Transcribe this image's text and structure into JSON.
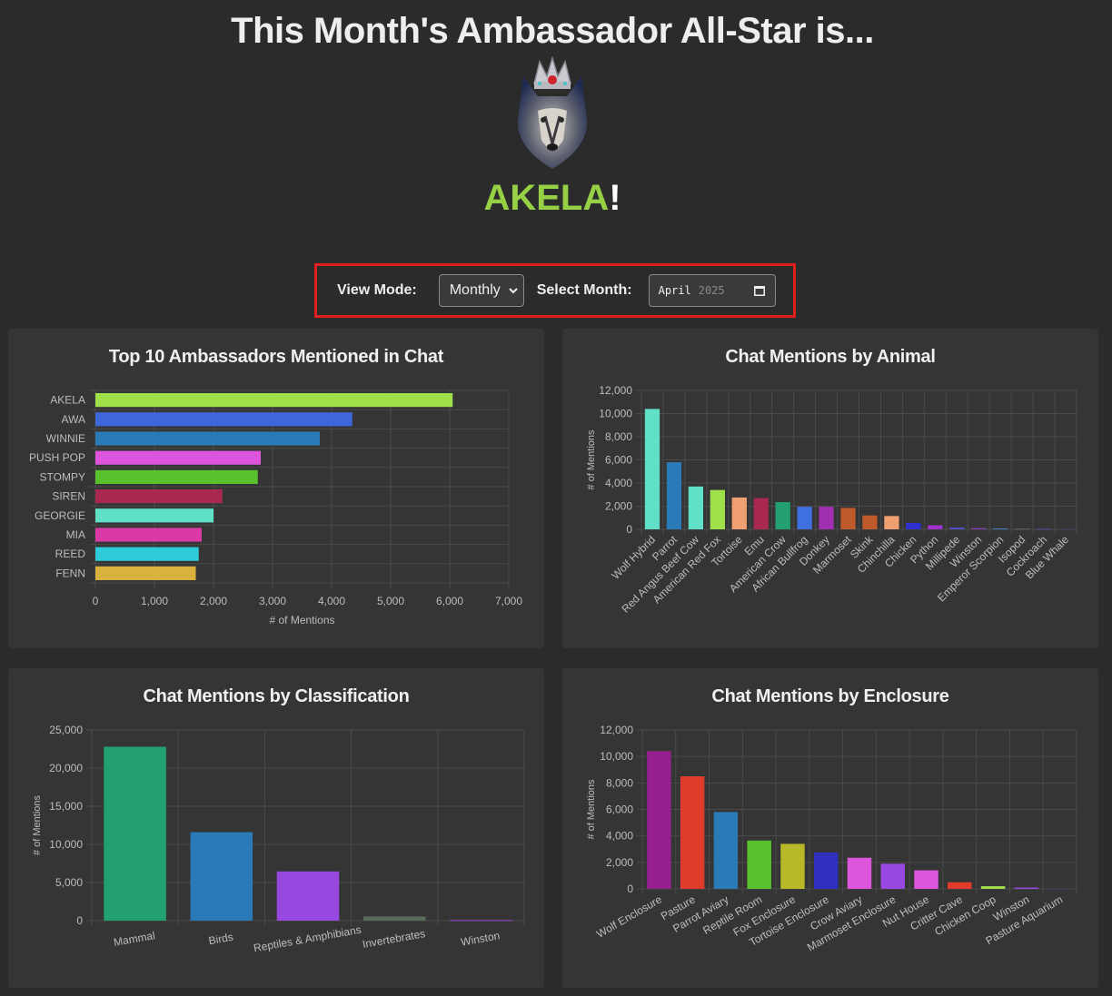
{
  "header": {
    "headline": "This Month's Ambassador All-Star is...",
    "winner_name": "AKELA",
    "winner_suffix": "!"
  },
  "controls": {
    "view_mode_label": "View Mode:",
    "view_mode_value": "Monthly",
    "select_month_label": "Select Month:",
    "month_value": "April",
    "year_value": "2025"
  },
  "colors": {
    "highlight_border": "#e01e1e",
    "winner_green": "#95d045"
  },
  "chart_data": [
    {
      "type": "bar",
      "orientation": "horizontal",
      "title": "Top 10 Ambassadors Mentioned in Chat",
      "xlabel": "# of Mentions",
      "ylabel": "",
      "xlim": [
        0,
        7000
      ],
      "ticks": [
        0,
        1000,
        2000,
        3000,
        4000,
        5000,
        6000,
        7000
      ],
      "categories": [
        "AKELA",
        "AWA",
        "WINNIE",
        "PUSH POP",
        "STOMPY",
        "SIREN",
        "GEORGIE",
        "MIA",
        "REED",
        "FENN"
      ],
      "values": [
        6050,
        4350,
        3800,
        2800,
        2750,
        2150,
        2000,
        1800,
        1750,
        1700
      ],
      "colors": [
        "#9fe04b",
        "#3f67dc",
        "#2a7ab8",
        "#dd55dd",
        "#5ac12e",
        "#a8284f",
        "#5fe0c7",
        "#d93aa5",
        "#2ecad8",
        "#d9b13d"
      ],
      "grid": true
    },
    {
      "type": "bar",
      "title": "Chat Mentions by Animal",
      "xlabel": "",
      "ylabel": "# of Mentions",
      "ylim": [
        0,
        12000
      ],
      "ticks": [
        0,
        2000,
        4000,
        6000,
        8000,
        10000,
        12000
      ],
      "categories": [
        "Wolf Hybrid",
        "Parrot",
        "Red Angus Beef Cow",
        "American Red Fox",
        "Tortoise",
        "Emu",
        "American Crow",
        "African Bullfrog",
        "Donkey",
        "Marmoset",
        "Skink",
        "Chinchilla",
        "Chicken",
        "Python",
        "Millipede",
        "Winston",
        "Emperor Scorpion",
        "Isopod",
        "Cockroach",
        "Blue Whale"
      ],
      "values": [
        10400,
        5800,
        3700,
        3400,
        2750,
        2700,
        2350,
        1950,
        1950,
        1850,
        1200,
        1150,
        550,
        350,
        150,
        100,
        80,
        60,
        50,
        30
      ],
      "colors": [
        "#5fe0c7",
        "#2a7ab8",
        "#5fe0c7",
        "#9fe04b",
        "#f0a070",
        "#a8284f",
        "#22a070",
        "#4070e0",
        "#a030b0",
        "#c05a2a",
        "#c05a2a",
        "#f0a070",
        "#3030d0",
        "#a030d0",
        "#5050d0",
        "#8040c0",
        "#4080c0",
        "#607060",
        "#5050a0",
        "#404060"
      ],
      "grid": true
    },
    {
      "type": "bar",
      "title": "Chat Mentions by Classification",
      "xlabel": "",
      "ylabel": "# of Mentions",
      "ylim": [
        0,
        25000
      ],
      "ticks": [
        0,
        5000,
        10000,
        15000,
        20000,
        25000
      ],
      "categories": [
        "Mammal",
        "Birds",
        "Reptiles & Amphibians",
        "Invertebrates",
        "Winston"
      ],
      "values": [
        22800,
        11600,
        6450,
        550,
        80
      ],
      "colors": [
        "#22a070",
        "#2a7ab8",
        "#9848e0",
        "#5a6a5a",
        "#9848e0"
      ],
      "grid": true
    },
    {
      "type": "bar",
      "title": "Chat Mentions by Enclosure",
      "xlabel": "",
      "ylabel": "# of Mentions",
      "ylim": [
        0,
        12000
      ],
      "ticks": [
        0,
        2000,
        4000,
        6000,
        8000,
        10000,
        12000
      ],
      "categories": [
        "Wolf Enclosure",
        "Pasture",
        "Parrot Aviary",
        "Reptile Room",
        "Fox Enclosure",
        "Tortoise Enclosure",
        "Crow Aviary",
        "Marmoset Enclosure",
        "Nut House",
        "Critter Cave",
        "Chicken Coop",
        "Winston",
        "Pasture Aquarium"
      ],
      "values": [
        10400,
        8500,
        5800,
        3650,
        3400,
        2750,
        2350,
        1900,
        1400,
        500,
        200,
        100,
        20
      ],
      "colors": [
        "#962090",
        "#e03c2c",
        "#2a7ab8",
        "#5ac12e",
        "#b8b828",
        "#3030c0",
        "#dd55dd",
        "#9848e0",
        "#dd55dd",
        "#e03c2c",
        "#9fe04b",
        "#9848e0",
        "#404060"
      ],
      "grid": true
    }
  ]
}
